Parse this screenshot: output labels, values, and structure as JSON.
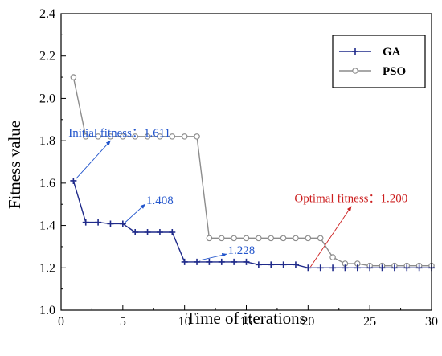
{
  "chart_data": {
    "type": "line",
    "xlabel": "Time of iterations",
    "ylabel": "Fitness value",
    "xlim": [
      0,
      30
    ],
    "ylim": [
      1.0,
      2.4
    ],
    "xticks": [
      0,
      5,
      10,
      15,
      20,
      25,
      30
    ],
    "yticks": [
      1.0,
      1.2,
      1.4,
      1.6,
      1.8,
      2.0,
      2.2,
      2.4
    ],
    "legend_position": "top-right",
    "series": [
      {
        "name": "GA",
        "color": "#1f2a8a",
        "marker": "plus",
        "x": [
          1,
          2,
          3,
          4,
          5,
          6,
          7,
          8,
          9,
          10,
          11,
          12,
          13,
          14,
          15,
          16,
          17,
          18,
          19,
          20,
          21,
          22,
          23,
          24,
          25,
          26,
          27,
          28,
          29,
          30
        ],
        "y": [
          1.611,
          1.415,
          1.415,
          1.408,
          1.408,
          1.368,
          1.368,
          1.368,
          1.368,
          1.228,
          1.228,
          1.228,
          1.228,
          1.228,
          1.228,
          1.215,
          1.215,
          1.215,
          1.215,
          1.2,
          1.2,
          1.2,
          1.2,
          1.2,
          1.2,
          1.2,
          1.2,
          1.2,
          1.2,
          1.2
        ]
      },
      {
        "name": "PSO",
        "color": "#8c8c8c",
        "marker": "circle",
        "x": [
          1,
          2,
          3,
          4,
          5,
          6,
          7,
          8,
          9,
          10,
          11,
          12,
          13,
          14,
          15,
          16,
          17,
          18,
          19,
          20,
          21,
          22,
          23,
          24,
          25,
          26,
          27,
          28,
          29,
          30
        ],
        "y": [
          2.1,
          1.82,
          1.82,
          1.82,
          1.82,
          1.82,
          1.82,
          1.82,
          1.82,
          1.82,
          1.82,
          1.34,
          1.34,
          1.34,
          1.34,
          1.34,
          1.34,
          1.34,
          1.34,
          1.34,
          1.34,
          1.25,
          1.22,
          1.22,
          1.21,
          1.21,
          1.21,
          1.21,
          1.21,
          1.21
        ]
      }
    ],
    "annotations": [
      {
        "text": "Initial fitness：1.611",
        "color": "#2255cc",
        "arrow_from": [
          4.0,
          1.8
        ],
        "arrow_to": [
          1.2,
          1.62
        ],
        "text_at": [
          0.6,
          1.82
        ]
      },
      {
        "text": "1.408",
        "color": "#2255cc",
        "arrow_from": [
          6.8,
          1.5
        ],
        "arrow_to": [
          5.2,
          1.415
        ],
        "text_at": [
          6.9,
          1.5
        ]
      },
      {
        "text": "1.228",
        "color": "#2255cc",
        "arrow_from": [
          13.4,
          1.265
        ],
        "arrow_to": [
          11.2,
          1.235
        ],
        "text_at": [
          13.5,
          1.265
        ]
      },
      {
        "text": "Optimal fitness：1.200",
        "color": "#cc1f1f",
        "arrow_from": [
          23.5,
          1.49
        ],
        "arrow_to": [
          20.2,
          1.205
        ],
        "text_at": [
          18.9,
          1.51
        ]
      }
    ]
  }
}
